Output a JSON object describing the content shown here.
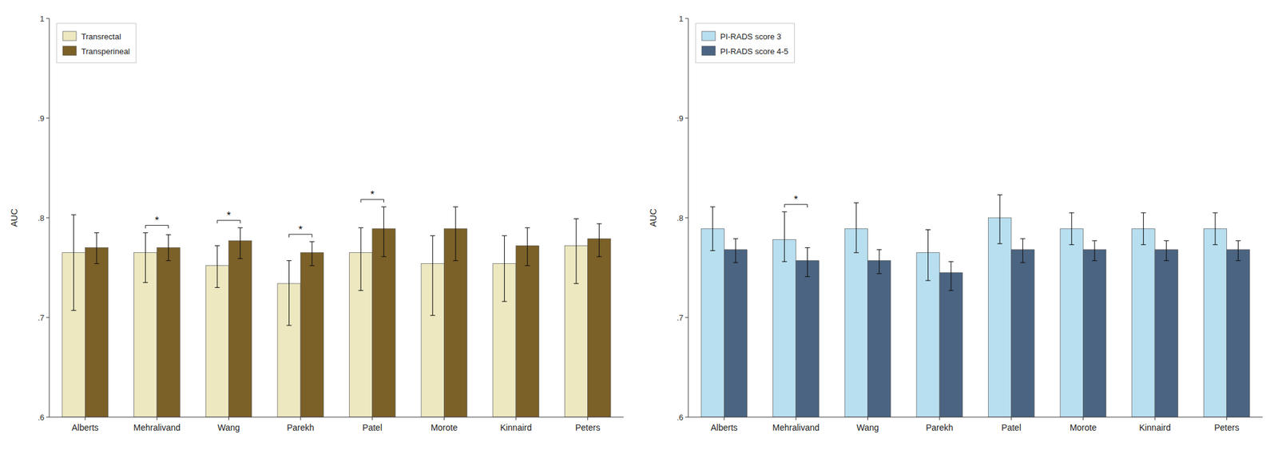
{
  "chart_data": [
    {
      "type": "bar",
      "categories": [
        "Alberts",
        "Mehralivand",
        "Wang",
        "Parekh",
        "Patel",
        "Morote",
        "Kinnaird",
        "Peters"
      ],
      "series": [
        {
          "name": "Transrectal",
          "color": "#EDE8C0",
          "values": [
            0.765,
            0.765,
            0.752,
            0.734,
            0.765,
            0.754,
            0.754,
            0.772
          ],
          "err_low": [
            0.058,
            0.03,
            0.022,
            0.042,
            0.038,
            0.052,
            0.038,
            0.038
          ],
          "err_high": [
            0.038,
            0.02,
            0.02,
            0.023,
            0.025,
            0.028,
            0.028,
            0.027
          ]
        },
        {
          "name": "Transperineal",
          "color": "#7B6028",
          "values": [
            0.77,
            0.77,
            0.777,
            0.765,
            0.789,
            0.789,
            0.772,
            0.779
          ],
          "err_low": [
            0.016,
            0.013,
            0.018,
            0.013,
            0.028,
            0.032,
            0.02,
            0.018
          ],
          "err_high": [
            0.015,
            0.013,
            0.013,
            0.011,
            0.022,
            0.022,
            0.018,
            0.015
          ]
        }
      ],
      "annotations": [
        {
          "text": "*",
          "category": "Mehralivand"
        },
        {
          "text": "*",
          "category": "Wang"
        },
        {
          "text": "*",
          "category": "Parekh"
        },
        {
          "text": "*",
          "category": "Patel"
        }
      ],
      "ylabel": "AUC",
      "ylim": [
        0.6,
        1.0
      ],
      "yticks": [
        {
          "value": 0.6,
          "label": ".6"
        },
        {
          "value": 0.7,
          "label": ".7"
        },
        {
          "value": 0.8,
          "label": ".8"
        },
        {
          "value": 0.9,
          "label": ".9"
        },
        1
      ],
      "legend": "upper left"
    },
    {
      "type": "bar",
      "categories": [
        "Alberts",
        "Mehralivand",
        "Wang",
        "Parekh",
        "Patel",
        "Morote",
        "Kinnaird",
        "Peters"
      ],
      "series": [
        {
          "name": "PI-RADS score 3",
          "color": "#B8DFF0",
          "values": [
            0.789,
            0.778,
            0.789,
            0.765,
            0.8,
            0.789,
            0.789,
            0.789
          ],
          "err_low": [
            0.022,
            0.022,
            0.024,
            0.028,
            0.026,
            0.016,
            0.016,
            0.016
          ],
          "err_high": [
            0.022,
            0.028,
            0.026,
            0.023,
            0.023,
            0.016,
            0.016,
            0.016
          ]
        },
        {
          "name": "PI-RADS score 4-5",
          "color": "#4A6481",
          "values": [
            0.768,
            0.757,
            0.757,
            0.745,
            0.768,
            0.768,
            0.768,
            0.768
          ],
          "err_low": [
            0.013,
            0.016,
            0.013,
            0.018,
            0.013,
            0.011,
            0.011,
            0.011
          ],
          "err_high": [
            0.011,
            0.013,
            0.011,
            0.011,
            0.011,
            0.009,
            0.009,
            0.009
          ]
        }
      ],
      "annotations": [
        {
          "text": "*",
          "category": "Mehralivand"
        }
      ],
      "ylabel": "AUC",
      "ylim": [
        0.6,
        1.0
      ],
      "yticks": [
        {
          "value": 0.6,
          "label": ".6"
        },
        {
          "value": 0.7,
          "label": ".7"
        },
        {
          "value": 0.8,
          "label": ".8"
        },
        {
          "value": 0.9,
          "label": ".9"
        },
        1
      ],
      "legend": "upper left"
    }
  ]
}
